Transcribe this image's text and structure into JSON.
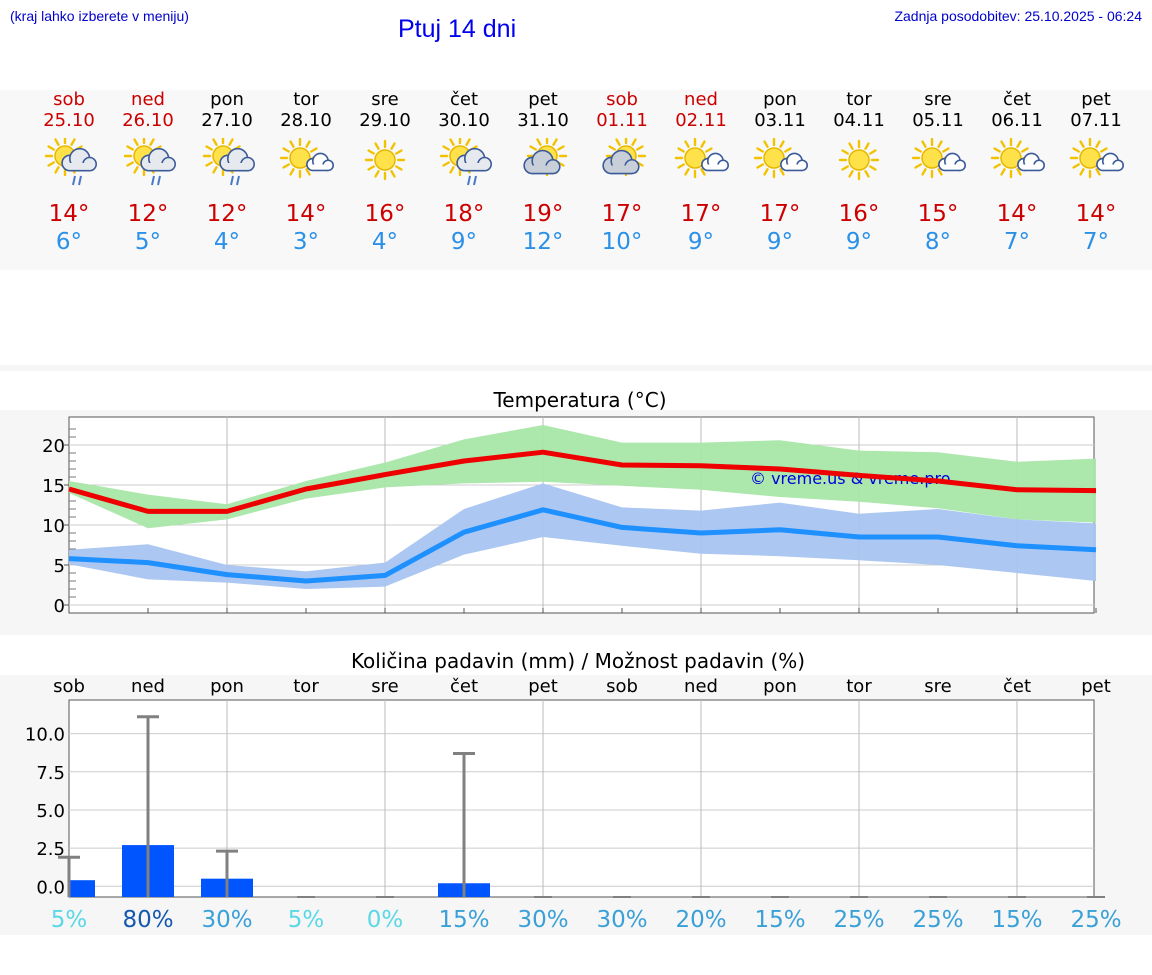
{
  "header": {
    "menu_hint": "(kraj lahko izberete v meniju)",
    "title": "Ptuj 14 dni",
    "last_update": "Zadnja posodobitev: 25.10.2025 - 06:24"
  },
  "days": [
    {
      "name": "sob",
      "date": "25.10",
      "weekend": true,
      "icon": "sun-cloud-rain-icon",
      "max": "14°",
      "min": "6°"
    },
    {
      "name": "ned",
      "date": "26.10",
      "weekend": true,
      "icon": "sun-cloud-rain-icon",
      "max": "12°",
      "min": "5°"
    },
    {
      "name": "pon",
      "date": "27.10",
      "weekend": false,
      "icon": "sun-cloud-rain-icon",
      "max": "12°",
      "min": "4°"
    },
    {
      "name": "tor",
      "date": "28.10",
      "weekend": false,
      "icon": "sun-small-cloud-icon",
      "max": "14°",
      "min": "3°"
    },
    {
      "name": "sre",
      "date": "29.10",
      "weekend": false,
      "icon": "sun-icon",
      "max": "16°",
      "min": "4°"
    },
    {
      "name": "čet",
      "date": "30.10",
      "weekend": false,
      "icon": "sun-cloud-rain-icon",
      "max": "18°",
      "min": "9°"
    },
    {
      "name": "pet",
      "date": "31.10",
      "weekend": false,
      "icon": "sun-cloud-icon",
      "max": "19°",
      "min": "12°"
    },
    {
      "name": "sob",
      "date": "01.11",
      "weekend": true,
      "icon": "sun-cloud-icon",
      "max": "17°",
      "min": "10°"
    },
    {
      "name": "ned",
      "date": "02.11",
      "weekend": true,
      "icon": "sun-small-cloud-icon",
      "max": "17°",
      "min": "9°"
    },
    {
      "name": "pon",
      "date": "03.11",
      "weekend": false,
      "icon": "sun-small-cloud-icon",
      "max": "17°",
      "min": "9°"
    },
    {
      "name": "tor",
      "date": "04.11",
      "weekend": false,
      "icon": "sun-icon",
      "max": "16°",
      "min": "9°"
    },
    {
      "name": "sre",
      "date": "05.11",
      "weekend": false,
      "icon": "sun-small-cloud-icon",
      "max": "15°",
      "min": "8°"
    },
    {
      "name": "čet",
      "date": "06.11",
      "weekend": false,
      "icon": "sun-small-cloud-icon",
      "max": "14°",
      "min": "7°"
    },
    {
      "name": "pet",
      "date": "07.11",
      "weekend": false,
      "icon": "sun-small-cloud-icon",
      "max": "14°",
      "min": "7°"
    }
  ],
  "colors": {
    "max_text": "#cc0000",
    "min_text": "#2a90e8",
    "max_line": "#ee0000",
    "max_band": "#a8e6a8",
    "min_line": "#1e90ff",
    "min_band": "#a8c4f0",
    "bar": "#0055ff",
    "error_bar": "#808080"
  },
  "chart_data": [
    {
      "type": "line",
      "title": "Temperatura (°C)",
      "watermark": "© vreme.us & vreme.pro",
      "ylim": [
        -1,
        23.5
      ],
      "yticks": [
        0,
        5,
        10,
        15,
        20
      ],
      "grid": true,
      "series": [
        {
          "values": [
            14.5,
            11.7,
            11.7,
            14.5,
            16.3,
            18.0,
            19.1,
            17.5,
            17.4,
            17.0,
            16.2,
            15.5,
            14.4,
            14.3
          ],
          "upper": [
            15.5,
            13.8,
            12.6,
            15.5,
            17.8,
            20.7,
            22.5,
            20.3,
            20.3,
            20.6,
            19.3,
            19.1,
            17.9,
            18.3
          ],
          "lower": [
            14.0,
            9.6,
            10.7,
            13.3,
            14.7,
            15.2,
            15.4,
            14.9,
            14.4,
            13.5,
            12.9,
            12.1,
            10.7,
            10.3
          ]
        },
        {
          "values": [
            5.8,
            5.3,
            3.8,
            3.0,
            3.7,
            9.1,
            11.9,
            9.7,
            9.0,
            9.4,
            8.5,
            8.5,
            7.4,
            6.9
          ],
          "upper": [
            6.9,
            7.6,
            5.0,
            4.2,
            5.3,
            12.0,
            15.2,
            12.2,
            11.8,
            12.8,
            11.4,
            12.0,
            10.7,
            10.2
          ],
          "lower": [
            5.1,
            3.2,
            2.8,
            2.0,
            2.3,
            6.3,
            8.5,
            7.4,
            6.4,
            6.1,
            5.6,
            5.0,
            4.0,
            3.0
          ]
        }
      ]
    },
    {
      "type": "bar",
      "title": "Količina padavin (mm) / Možnost padavin (%)",
      "categories": [
        "sob",
        "ned",
        "pon",
        "tor",
        "sre",
        "čet",
        "pet",
        "sob",
        "ned",
        "pon",
        "tor",
        "sre",
        "čet",
        "pet"
      ],
      "values": [
        0.4,
        2.7,
        0.5,
        0,
        0,
        0.2,
        0,
        0,
        0,
        0,
        0,
        0,
        0,
        0
      ],
      "error_max": [
        1.9,
        11.1,
        2.3,
        0,
        0,
        8.7,
        0,
        0,
        0,
        0,
        0,
        0,
        0,
        0
      ],
      "ylim": [
        -0.7,
        12.2
      ],
      "yticks": [
        {
          "v": 0,
          "label": "0.0"
        },
        {
          "v": 2.5,
          "label": "2.5"
        },
        {
          "v": 5,
          "label": "5.0"
        },
        {
          "v": 7.5,
          "label": "7.5"
        },
        {
          "v": 10,
          "label": "10.0"
        }
      ],
      "probabilities": [
        "5%",
        "80%",
        "30%",
        "5%",
        "0%",
        "15%",
        "30%",
        "30%",
        "20%",
        "15%",
        "25%",
        "25%",
        "15%",
        "25%"
      ],
      "probability_colors": [
        "#5ad8e6",
        "#1558b0",
        "#3aa0d8",
        "#5ad8e6",
        "#5ad8e6",
        "#3aa0d8",
        "#3aa0d8",
        "#3aa0d8",
        "#3aa0d8",
        "#3aa0d8",
        "#3aa0d8",
        "#3aa0d8",
        "#3aa0d8",
        "#3aa0d8"
      ]
    }
  ]
}
